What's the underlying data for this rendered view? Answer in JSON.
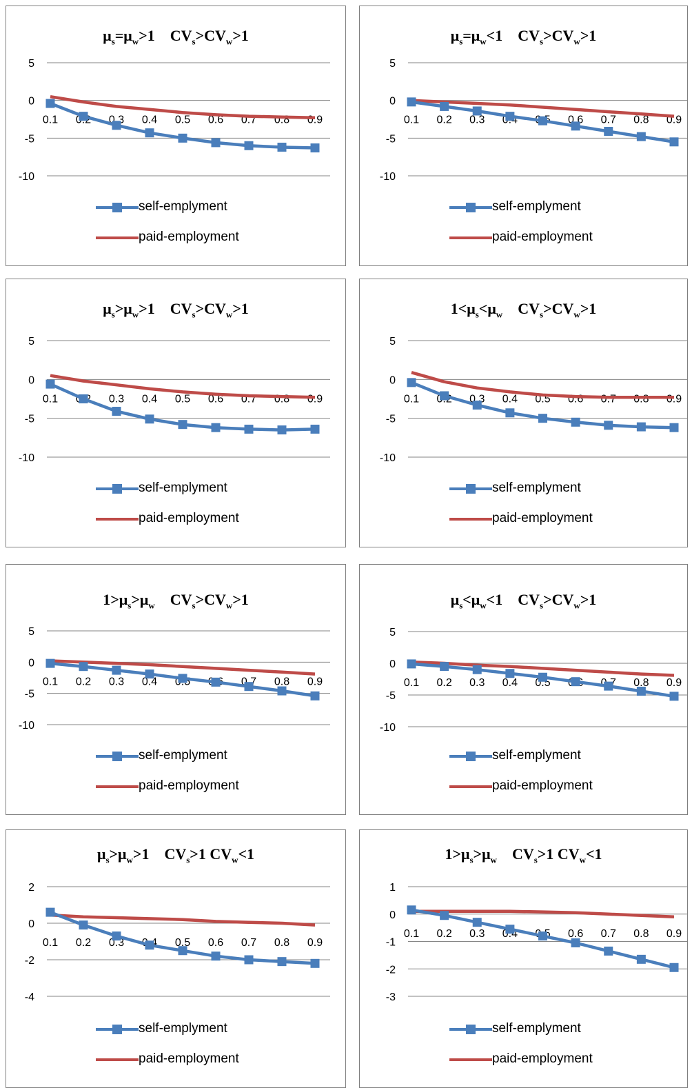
{
  "colors": {
    "self": "#4a7ebb",
    "paid": "#be4b48",
    "grid": "#868686"
  },
  "chart_data": [
    {
      "type": "line",
      "title": [
        {
          "t": "μ"
        },
        {
          "s": "s"
        },
        {
          "t": "=μ"
        },
        {
          "s": "w"
        },
        {
          "t": ">1    CV"
        },
        {
          "s": "s"
        },
        {
          "t": ">CV"
        },
        {
          "s": "w"
        },
        {
          "t": ">1"
        }
      ],
      "x": [
        "0.1",
        "0.2",
        "0.3",
        "0.4",
        "0.5",
        "0.6",
        "0.7",
        "0.8",
        "0.9"
      ],
      "yticks": [
        "5",
        "0",
        "-5",
        "-10"
      ],
      "ylim": [
        -10,
        5
      ],
      "series": [
        {
          "name": "self-emplyment",
          "marker": "square",
          "values": [
            -0.4,
            -2.1,
            -3.3,
            -4.3,
            -5.0,
            -5.6,
            -6.0,
            -6.2,
            -6.3
          ]
        },
        {
          "name": "paid-employment",
          "marker": "none",
          "values": [
            0.5,
            -0.2,
            -0.8,
            -1.2,
            -1.6,
            -1.9,
            -2.1,
            -2.2,
            -2.3
          ]
        }
      ]
    },
    {
      "type": "line",
      "title": [
        {
          "t": "μ"
        },
        {
          "s": "s"
        },
        {
          "t": "=μ"
        },
        {
          "s": "w"
        },
        {
          "t": "<1    CV"
        },
        {
          "s": "s"
        },
        {
          "t": ">CV"
        },
        {
          "s": "w"
        },
        {
          "t": ">1"
        }
      ],
      "x": [
        "0.1",
        "0.2",
        "0.3",
        "0.4",
        "0.5",
        "0.6",
        "0.7",
        "0.8",
        "0.9"
      ],
      "yticks": [
        "5",
        "0",
        "-5",
        "-10"
      ],
      "ylim": [
        -10,
        5
      ],
      "series": [
        {
          "name": "self-emplyment",
          "marker": "square",
          "values": [
            -0.2,
            -0.8,
            -1.4,
            -2.1,
            -2.7,
            -3.4,
            -4.1,
            -4.8,
            -5.5
          ]
        },
        {
          "name": "paid-employment",
          "marker": "none",
          "values": [
            0.0,
            -0.2,
            -0.4,
            -0.6,
            -0.9,
            -1.2,
            -1.5,
            -1.8,
            -2.1
          ]
        }
      ]
    },
    {
      "type": "line",
      "title": [
        {
          "t": "μ"
        },
        {
          "s": "s"
        },
        {
          "t": ">μ"
        },
        {
          "s": "w"
        },
        {
          "t": ">1    CV"
        },
        {
          "s": "s"
        },
        {
          "t": ">CV"
        },
        {
          "s": "w"
        },
        {
          "t": ">1"
        }
      ],
      "x": [
        "0.1",
        "0.2",
        "0.3",
        "0.4",
        "0.5",
        "0.6",
        "0.7",
        "0.8",
        "0.9"
      ],
      "yticks": [
        "5",
        "0",
        "-5",
        "-10"
      ],
      "ylim": [
        -10,
        5
      ],
      "series": [
        {
          "name": "self-emplyment",
          "marker": "square",
          "values": [
            -0.6,
            -2.5,
            -4.1,
            -5.1,
            -5.8,
            -6.2,
            -6.4,
            -6.5,
            -6.4
          ]
        },
        {
          "name": "paid-employment",
          "marker": "none",
          "values": [
            0.5,
            -0.2,
            -0.7,
            -1.2,
            -1.6,
            -1.9,
            -2.1,
            -2.2,
            -2.3
          ]
        }
      ]
    },
    {
      "type": "line",
      "title": [
        {
          "t": "1<μ"
        },
        {
          "s": "s"
        },
        {
          "t": "<μ"
        },
        {
          "s": "w"
        },
        {
          "t": "    CV"
        },
        {
          "s": "s"
        },
        {
          "t": ">CV"
        },
        {
          "s": "w"
        },
        {
          "t": ">1"
        }
      ],
      "x": [
        "0.1",
        "0.2",
        "0.3",
        "0.4",
        "0.5",
        "0.6",
        "0.7",
        "0.8",
        "0.9"
      ],
      "yticks": [
        "5",
        "0",
        "-5",
        "-10"
      ],
      "ylim": [
        -10,
        5
      ],
      "series": [
        {
          "name": "self-emplyment",
          "marker": "square",
          "values": [
            -0.4,
            -2.1,
            -3.3,
            -4.3,
            -5.0,
            -5.5,
            -5.9,
            -6.1,
            -6.2
          ]
        },
        {
          "name": "paid-employment",
          "marker": "none",
          "values": [
            0.9,
            -0.3,
            -1.1,
            -1.6,
            -2.0,
            -2.2,
            -2.3,
            -2.3,
            -2.3
          ]
        }
      ]
    },
    {
      "type": "line",
      "title": [
        {
          "t": "1>μ"
        },
        {
          "s": "s"
        },
        {
          "t": ">μ"
        },
        {
          "s": "w"
        },
        {
          "t": "    CV"
        },
        {
          "s": "s"
        },
        {
          "t": ">CV"
        },
        {
          "s": "w"
        },
        {
          "t": ">1"
        }
      ],
      "x": [
        "0.1",
        "0.2",
        "0.3",
        "0.4",
        "0.5",
        "0.6",
        "0.7",
        "0.8",
        "0.9"
      ],
      "yticks": [
        "5",
        "0",
        "-5",
        "-10"
      ],
      "ylim": [
        -10,
        5
      ],
      "series": [
        {
          "name": "self-emplyment",
          "marker": "square",
          "values": [
            -0.2,
            -0.7,
            -1.3,
            -1.9,
            -2.6,
            -3.2,
            -3.9,
            -4.6,
            -5.4
          ]
        },
        {
          "name": "paid-employment",
          "marker": "none",
          "values": [
            0.2,
            0.0,
            -0.2,
            -0.4,
            -0.7,
            -1.0,
            -1.3,
            -1.6,
            -1.9
          ]
        }
      ]
    },
    {
      "type": "line",
      "title": [
        {
          "t": "μ"
        },
        {
          "s": "s"
        },
        {
          "t": "<μ"
        },
        {
          "s": "w"
        },
        {
          "t": "<1    CV"
        },
        {
          "s": "s"
        },
        {
          "t": ">CV"
        },
        {
          "s": "w"
        },
        {
          "t": ">1"
        }
      ],
      "x": [
        "0.1",
        "0.2",
        "0.3",
        "0.4",
        "0.5",
        "0.6",
        "0.7",
        "0.8",
        "0.9"
      ],
      "yticks": [
        "5",
        "0",
        "-5",
        "-10"
      ],
      "ylim": [
        -10,
        5
      ],
      "series": [
        {
          "name": "self-emplyment",
          "marker": "square",
          "values": [
            -0.1,
            -0.5,
            -1.0,
            -1.6,
            -2.2,
            -2.9,
            -3.6,
            -4.4,
            -5.2
          ]
        },
        {
          "name": "paid-employment",
          "marker": "none",
          "values": [
            0.2,
            0.0,
            -0.3,
            -0.5,
            -0.8,
            -1.1,
            -1.4,
            -1.7,
            -1.9
          ]
        }
      ]
    },
    {
      "type": "line",
      "title": [
        {
          "t": "μ"
        },
        {
          "s": "s"
        },
        {
          "t": ">μ"
        },
        {
          "s": "w"
        },
        {
          "t": ">1    CV"
        },
        {
          "s": "s"
        },
        {
          "t": ">1 CV"
        },
        {
          "s": "w"
        },
        {
          "t": "<1"
        }
      ],
      "x": [
        "0.1",
        "0.2",
        "0.3",
        "0.4",
        "0.5",
        "0.6",
        "0.7",
        "0.8",
        "0.9"
      ],
      "yticks": [
        "2",
        "0",
        "-2",
        "-4"
      ],
      "ylim": [
        -4,
        2
      ],
      "series": [
        {
          "name": "self-emplyment",
          "marker": "square",
          "values": [
            0.6,
            -0.1,
            -0.7,
            -1.2,
            -1.5,
            -1.8,
            -2.0,
            -2.1,
            -2.2
          ]
        },
        {
          "name": "paid-employment",
          "marker": "none",
          "values": [
            0.45,
            0.35,
            0.3,
            0.25,
            0.2,
            0.1,
            0.05,
            0.0,
            -0.1
          ]
        }
      ]
    },
    {
      "type": "line",
      "title": [
        {
          "t": "1>μ"
        },
        {
          "s": "s"
        },
        {
          "t": ">μ"
        },
        {
          "s": "w"
        },
        {
          "t": "    CV"
        },
        {
          "s": "s"
        },
        {
          "t": ">1 CV"
        },
        {
          "s": "w"
        },
        {
          "t": "<1"
        }
      ],
      "x": [
        "0.1",
        "0.2",
        "0.3",
        "0.4",
        "0.5",
        "0.6",
        "0.7",
        "0.8",
        "0.9"
      ],
      "yticks": [
        "1",
        "0",
        "-1",
        "-2",
        "-3"
      ],
      "ylim": [
        -3,
        1
      ],
      "series": [
        {
          "name": "self-emplyment",
          "marker": "square",
          "values": [
            0.15,
            -0.05,
            -0.3,
            -0.55,
            -0.8,
            -1.05,
            -1.35,
            -1.65,
            -1.95
          ]
        },
        {
          "name": "paid-employment",
          "marker": "none",
          "values": [
            0.1,
            0.1,
            0.1,
            0.1,
            0.08,
            0.05,
            0.0,
            -0.05,
            -0.1
          ]
        }
      ]
    }
  ]
}
